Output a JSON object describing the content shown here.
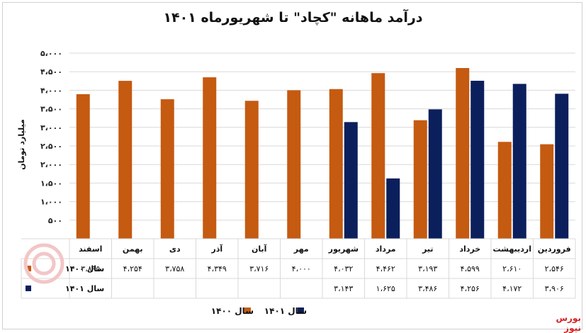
{
  "header": {
    "title": "درآمد ماهانه \"کچاد\" تا شهریورماه ۱۴۰۱"
  },
  "brand": {
    "name": "بورس نیوز"
  },
  "colors": {
    "series1400": "#c55a11",
    "series1401": "#0b1f5c",
    "grid": "#d9d9d9"
  },
  "chart_data": {
    "type": "bar",
    "ylabel": "میلیارد تومان",
    "ylim": [
      0,
      5000
    ],
    "yticks": [
      "۵۰۰",
      "۱،۰۰۰",
      "۱،۵۰۰",
      "۲،۰۰۰",
      "۲،۵۰۰",
      "۳،۰۰۰",
      "۳،۵۰۰",
      "۴،۰۰۰",
      "۴،۵۰۰",
      "۵،۰۰۰"
    ],
    "ytick_values": [
      500,
      1000,
      1500,
      2000,
      2500,
      3000,
      3500,
      4000,
      4500,
      5000
    ],
    "categories": [
      "فروردین",
      "اردیبهشت",
      "خرداد",
      "تیر",
      "مرداد",
      "شهریور",
      "مهر",
      "آبان",
      "آذر",
      "دی",
      "بهمن",
      "اسفند"
    ],
    "series": [
      {
        "name": "سال ۱۴۰۰",
        "values": [
          2546,
          2610,
          4599,
          3193,
          4462,
          4032,
          4000,
          3716,
          4349,
          3758,
          4254,
          3895
        ],
        "labels": [
          "۲،۵۴۶",
          "۲،۶۱۰",
          "۴،۵۹۹",
          "۳،۱۹۳",
          "۴،۴۶۲",
          "۴،۰۳۲",
          "۴،۰۰۰",
          "۳،۷۱۶",
          "۴،۳۴۹",
          "۳،۷۵۸",
          "۴،۲۵۴",
          "۳،۸۹۵"
        ]
      },
      {
        "name": "سال ۱۴۰۱",
        "values": [
          3906,
          4172,
          4256,
          3486,
          1625,
          3143,
          null,
          null,
          null,
          null,
          null,
          null
        ],
        "labels": [
          "۳،۹۰۶",
          "۴،۱۷۲",
          "۴،۲۵۶",
          "۳،۴۸۶",
          "۱،۶۲۵",
          "۳،۱۴۳",
          "",
          "",
          "",
          "",
          "",
          ""
        ]
      }
    ],
    "legend": "bottom",
    "grid": true,
    "data_table": true
  }
}
